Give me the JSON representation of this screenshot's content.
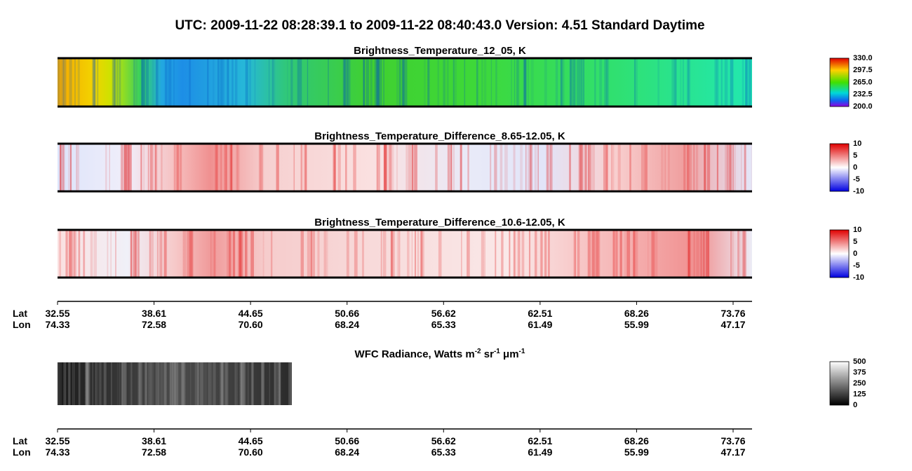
{
  "title": "UTC:  2009-11-22   08:28:39.1  to  2009-11-22   08:40:43.0    Version: 4.51  Standard Daytime",
  "panels": [
    {
      "title": "Brightness_Temperature_12_05, K",
      "colorbar": [
        "330.0",
        "297.5",
        "265.0",
        "232.5",
        "200.0"
      ]
    },
    {
      "title": "Brightness_Temperature_Difference_8.65-12.05, K",
      "colorbar": [
        "10",
        "5",
        "0",
        "-5",
        "-10"
      ]
    },
    {
      "title": "Brightness_Temperature_Difference_10.6-12.05, K",
      "colorbar": [
        "10",
        "5",
        "0",
        "-5",
        "-10"
      ]
    }
  ],
  "wfc": {
    "title_parts": [
      "WFC Radiance, Watts m",
      "-2",
      " sr",
      "-1",
      " μm",
      "-1"
    ],
    "colorbar": [
      "500",
      "375",
      "250",
      "125",
      "0"
    ]
  },
  "axis": {
    "lat_label": "Lat",
    "lon_label": "Lon",
    "lat": [
      "32.55",
      "38.61",
      "44.65",
      "50.66",
      "56.62",
      "62.51",
      "68.26",
      "73.76"
    ],
    "lon": [
      "74.33",
      "72.58",
      "70.60",
      "68.24",
      "65.33",
      "61.49",
      "55.99",
      "47.17"
    ]
  }
}
